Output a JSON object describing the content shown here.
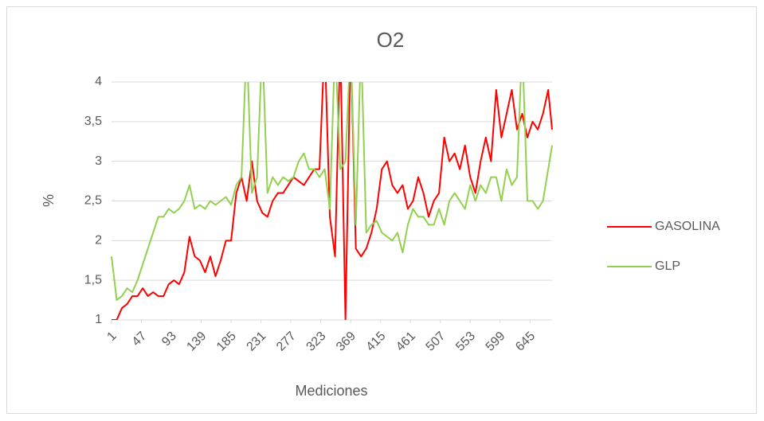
{
  "chart_data": {
    "type": "line",
    "title": "O2",
    "x_label": "Mediciones",
    "y_label": "%",
    "x": [
      1,
      9,
      17,
      25,
      33,
      41,
      49,
      57,
      65,
      73,
      81,
      89,
      97,
      105,
      113,
      121,
      129,
      137,
      145,
      153,
      161,
      169,
      177,
      185,
      193,
      201,
      209,
      217,
      225,
      233,
      241,
      249,
      257,
      265,
      273,
      281,
      289,
      297,
      305,
      313,
      321,
      329,
      337,
      345,
      353,
      361,
      369,
      377,
      385,
      393,
      401,
      409,
      417,
      425,
      433,
      441,
      449,
      457,
      465,
      473,
      481,
      489,
      497,
      505,
      513,
      521,
      529,
      537,
      545,
      553,
      561,
      569,
      577,
      585,
      593,
      601,
      609,
      617,
      625,
      633,
      641,
      649,
      657,
      665,
      673,
      679
    ],
    "series": [
      {
        "name": "GASOLINA",
        "color": "#ff0000",
        "values": [
          1.0,
          1.0,
          1.15,
          1.2,
          1.3,
          1.3,
          1.4,
          1.3,
          1.35,
          1.3,
          1.3,
          1.45,
          1.5,
          1.45,
          1.6,
          2.05,
          1.8,
          1.75,
          1.6,
          1.8,
          1.55,
          1.75,
          2.0,
          2.0,
          2.6,
          2.8,
          2.5,
          3.0,
          2.5,
          2.35,
          2.3,
          2.5,
          2.6,
          2.6,
          2.7,
          2.8,
          2.75,
          2.7,
          2.8,
          2.9,
          2.9,
          4.5,
          2.3,
          1.8,
          4.5,
          1.0,
          4.5,
          1.9,
          1.8,
          1.9,
          2.1,
          2.4,
          2.9,
          3.0,
          2.7,
          2.6,
          2.7,
          2.4,
          2.5,
          2.8,
          2.6,
          2.3,
          2.5,
          2.6,
          3.3,
          3.0,
          3.1,
          2.9,
          3.2,
          2.8,
          2.6,
          3.0,
          3.3,
          3.0,
          3.9,
          3.3,
          3.6,
          3.9,
          3.4,
          3.6,
          3.3,
          3.5,
          3.4,
          3.6,
          3.9,
          3.4
        ]
      },
      {
        "name": "GLP",
        "color": "#92d050",
        "values": [
          1.8,
          1.25,
          1.3,
          1.4,
          1.35,
          1.5,
          1.7,
          1.9,
          2.1,
          2.3,
          2.3,
          2.4,
          2.35,
          2.4,
          2.5,
          2.7,
          2.4,
          2.45,
          2.4,
          2.5,
          2.45,
          2.5,
          2.55,
          2.45,
          2.7,
          2.8,
          4.5,
          2.6,
          2.8,
          4.5,
          2.6,
          2.8,
          2.7,
          2.8,
          2.75,
          2.8,
          3.0,
          3.1,
          2.9,
          2.9,
          2.8,
          2.9,
          2.4,
          4.5,
          2.9,
          3.0,
          4.5,
          2.2,
          4.5,
          2.1,
          2.2,
          2.25,
          2.1,
          2.05,
          2.0,
          2.1,
          1.85,
          2.2,
          2.4,
          2.3,
          2.3,
          2.2,
          2.2,
          2.4,
          2.2,
          2.5,
          2.6,
          2.5,
          2.4,
          2.7,
          2.5,
          2.7,
          2.6,
          2.8,
          2.8,
          2.5,
          2.9,
          2.7,
          2.8,
          4.5,
          2.5,
          2.5,
          2.4,
          2.5,
          2.9,
          3.2
        ]
      }
    ],
    "xlim": [
      1,
      679
    ],
    "xticks": [
      1,
      47,
      93,
      139,
      185,
      231,
      277,
      323,
      369,
      415,
      461,
      507,
      553,
      599,
      645
    ],
    "ylim": [
      1,
      4
    ],
    "yticks": [
      1,
      {
        "value": 1.5,
        "label": "1,5"
      },
      2,
      {
        "value": 2.5,
        "label": "2,5"
      },
      3,
      {
        "value": 3.5,
        "label": "3,5"
      },
      4
    ],
    "grid": true,
    "legend": "right"
  }
}
